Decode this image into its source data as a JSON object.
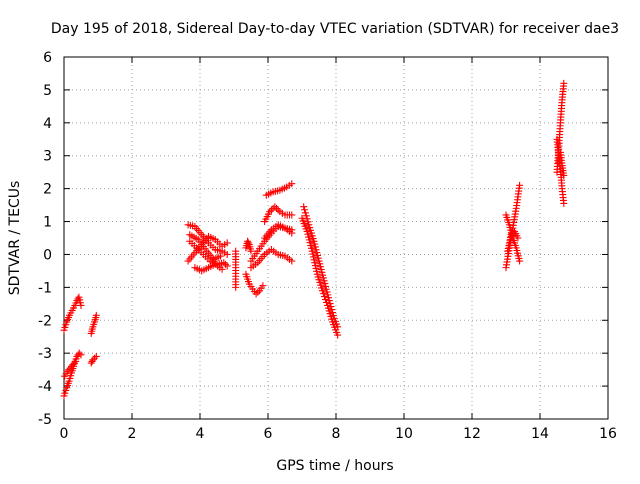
{
  "chart_data": {
    "type": "scatter",
    "title": "Day 195 of 2018, Sidereal Day-to-day VTEC variation (SDTVAR) for receiver dae3",
    "xlabel": "GPS time / hours",
    "ylabel": "SDTVAR / TECUs",
    "xlim": [
      0,
      16
    ],
    "ylim": [
      -5,
      6
    ],
    "xticks": [
      0,
      2,
      4,
      6,
      8,
      10,
      12,
      14,
      16
    ],
    "yticks": [
      -5,
      -4,
      -3,
      -2,
      -1,
      0,
      1,
      2,
      3,
      4,
      5,
      6
    ],
    "grid": true,
    "marker": "+",
    "color": "#ff0000",
    "segments": [
      [
        [
          0.0,
          -4.3
        ],
        [
          0.08,
          -4.05
        ],
        [
          0.15,
          -3.85
        ],
        [
          0.22,
          -3.6
        ],
        [
          0.28,
          -3.4
        ],
        [
          0.33,
          -3.25
        ],
        [
          0.38,
          -3.1
        ],
        [
          0.45,
          -3.0
        ],
        [
          0.5,
          -3.05
        ]
      ],
      [
        [
          0.02,
          -3.7
        ],
        [
          0.1,
          -3.55
        ],
        [
          0.18,
          -3.45
        ],
        [
          0.26,
          -3.35
        ],
        [
          0.34,
          -3.25
        ]
      ],
      [
        [
          0.0,
          -2.3
        ],
        [
          0.08,
          -2.05
        ],
        [
          0.16,
          -1.85
        ],
        [
          0.24,
          -1.7
        ],
        [
          0.32,
          -1.55
        ],
        [
          0.38,
          -1.4
        ],
        [
          0.44,
          -1.3
        ],
        [
          0.5,
          -1.55
        ]
      ],
      [
        [
          0.8,
          -3.3
        ],
        [
          0.85,
          -3.2
        ],
        [
          0.9,
          -3.15
        ],
        [
          0.95,
          -3.1
        ]
      ],
      [
        [
          0.8,
          -2.4
        ],
        [
          0.85,
          -2.2
        ],
        [
          0.9,
          -2.05
        ],
        [
          0.95,
          -1.85
        ]
      ],
      [
        [
          3.65,
          0.9
        ],
        [
          3.85,
          0.85
        ],
        [
          4.05,
          0.6
        ],
        [
          4.25,
          0.35
        ],
        [
          4.45,
          0.15
        ],
        [
          4.65,
          0.1
        ],
        [
          4.8,
          0.0
        ]
      ],
      [
        [
          3.65,
          -0.2
        ],
        [
          3.85,
          0.05
        ],
        [
          4.05,
          0.3
        ],
        [
          4.25,
          0.55
        ],
        [
          4.45,
          0.45
        ],
        [
          4.65,
          0.25
        ],
        [
          4.8,
          0.35
        ]
      ],
      [
        [
          3.7,
          0.4
        ],
        [
          3.9,
          0.2
        ],
        [
          4.1,
          0.0
        ],
        [
          4.3,
          -0.2
        ],
        [
          4.5,
          -0.3
        ],
        [
          4.7,
          -0.25
        ],
        [
          4.8,
          -0.35
        ]
      ],
      [
        [
          3.7,
          0.6
        ],
        [
          3.95,
          0.45
        ],
        [
          4.2,
          0.1
        ],
        [
          4.4,
          -0.15
        ],
        [
          4.6,
          -0.05
        ]
      ],
      [
        [
          3.85,
          -0.4
        ],
        [
          4.05,
          -0.5
        ],
        [
          4.25,
          -0.4
        ],
        [
          4.45,
          -0.3
        ],
        [
          4.65,
          -0.45
        ]
      ],
      [
        [
          5.05,
          0.1
        ],
        [
          5.05,
          -0.4
        ],
        [
          5.05,
          -0.75
        ],
        [
          5.05,
          -1.0
        ]
      ],
      [
        [
          5.35,
          -0.6
        ],
        [
          5.45,
          -0.9
        ],
        [
          5.55,
          -1.05
        ],
        [
          5.65,
          -1.2
        ],
        [
          5.75,
          -1.1
        ],
        [
          5.85,
          -0.95
        ]
      ],
      [
        [
          5.35,
          0.2
        ],
        [
          5.4,
          0.4
        ],
        [
          5.45,
          0.3
        ],
        [
          5.5,
          0.1
        ]
      ],
      [
        [
          5.5,
          -0.4
        ],
        [
          5.7,
          -0.25
        ],
        [
          5.9,
          0.0
        ],
        [
          6.1,
          0.15
        ],
        [
          6.3,
          0.0
        ],
        [
          6.5,
          -0.05
        ],
        [
          6.7,
          -0.2
        ]
      ],
      [
        [
          5.5,
          -0.2
        ],
        [
          5.7,
          0.1
        ],
        [
          5.9,
          0.4
        ],
        [
          6.1,
          0.65
        ],
        [
          6.3,
          0.85
        ],
        [
          6.5,
          0.8
        ],
        [
          6.7,
          0.75
        ]
      ],
      [
        [
          5.9,
          0.5
        ],
        [
          6.1,
          0.75
        ],
        [
          6.3,
          0.9
        ],
        [
          6.5,
          0.8
        ],
        [
          6.7,
          0.65
        ]
      ],
      [
        [
          5.9,
          1.0
        ],
        [
          6.05,
          1.3
        ],
        [
          6.2,
          1.45
        ],
        [
          6.35,
          1.3
        ],
        [
          6.5,
          1.2
        ],
        [
          6.7,
          1.2
        ]
      ],
      [
        [
          5.95,
          1.8
        ],
        [
          6.15,
          1.9
        ],
        [
          6.35,
          1.95
        ],
        [
          6.55,
          2.05
        ],
        [
          6.7,
          2.15
        ]
      ],
      [
        [
          7.05,
          1.45
        ],
        [
          7.2,
          0.9
        ],
        [
          7.35,
          0.4
        ],
        [
          7.5,
          -0.2
        ],
        [
          7.65,
          -0.8
        ],
        [
          7.8,
          -1.4
        ],
        [
          7.95,
          -1.95
        ],
        [
          8.05,
          -2.2
        ]
      ],
      [
        [
          7.0,
          1.1
        ],
        [
          7.15,
          0.7
        ],
        [
          7.3,
          0.1
        ],
        [
          7.45,
          -0.6
        ],
        [
          7.6,
          -1.1
        ],
        [
          7.75,
          -1.55
        ],
        [
          7.9,
          -2.05
        ],
        [
          8.05,
          -2.45
        ]
      ],
      [
        [
          13.0,
          1.2
        ],
        [
          13.1,
          0.9
        ],
        [
          13.2,
          0.5
        ],
        [
          13.3,
          0.2
        ],
        [
          13.4,
          -0.2
        ]
      ],
      [
        [
          13.0,
          -0.4
        ],
        [
          13.1,
          0.2
        ],
        [
          13.2,
          0.8
        ],
        [
          13.3,
          1.4
        ],
        [
          13.4,
          2.1
        ]
      ],
      [
        [
          13.05,
          0.1
        ],
        [
          13.15,
          0.6
        ],
        [
          13.25,
          0.7
        ],
        [
          13.35,
          0.5
        ]
      ],
      [
        [
          14.5,
          3.5
        ],
        [
          14.55,
          3.0
        ],
        [
          14.6,
          2.6
        ],
        [
          14.65,
          2.0
        ],
        [
          14.7,
          1.55
        ]
      ],
      [
        [
          14.5,
          2.5
        ],
        [
          14.55,
          3.2
        ],
        [
          14.6,
          4.0
        ],
        [
          14.65,
          4.7
        ],
        [
          14.7,
          5.2
        ]
      ],
      [
        [
          14.55,
          2.8
        ],
        [
          14.6,
          3.1
        ],
        [
          14.65,
          2.7
        ],
        [
          14.7,
          2.4
        ]
      ]
    ]
  }
}
